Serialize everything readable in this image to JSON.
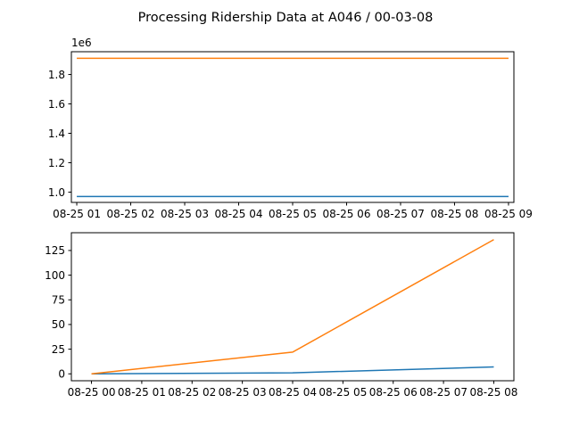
{
  "figure": {
    "title": "Processing Ridership Data at A046 / 00-03-08"
  },
  "chart_data": [
    {
      "type": "line",
      "title": "",
      "xlabel": "",
      "ylabel": "",
      "y_offset_label": "1e6",
      "xlim": [
        0.9,
        9.1
      ],
      "ylim": [
        0.93,
        1.955
      ],
      "x_ticks": [
        1,
        2,
        3,
        4,
        5,
        6,
        7,
        8,
        9
      ],
      "x_tick_labels": [
        "08-25 01",
        "08-25 02",
        "08-25 03",
        "08-25 04",
        "08-25 05",
        "08-25 06",
        "08-25 07",
        "08-25 08",
        "08-25 09"
      ],
      "y_ticks": [
        1.0,
        1.2,
        1.4,
        1.6,
        1.8
      ],
      "y_tick_labels": [
        "1.0",
        "1.2",
        "1.4",
        "1.6",
        "1.8"
      ],
      "grid": false,
      "legend": "none",
      "series": [
        {
          "color": "#1f77b4",
          "x": [
            1,
            5,
            9
          ],
          "y": [
            0.97,
            0.97,
            0.97
          ]
        },
        {
          "color": "#ff7f0e",
          "x": [
            1,
            5,
            9
          ],
          "y": [
            1.91,
            1.91,
            1.91
          ]
        }
      ]
    },
    {
      "type": "line",
      "title": "",
      "xlabel": "",
      "ylabel": "",
      "xlim": [
        -0.4,
        8.4
      ],
      "ylim": [
        -7,
        143
      ],
      "x_ticks": [
        0,
        1,
        2,
        3,
        4,
        5,
        6,
        7,
        8
      ],
      "x_tick_labels": [
        "08-25 00",
        "08-25 01",
        "08-25 02",
        "08-25 03",
        "08-25 04",
        "08-25 05",
        "08-25 06",
        "08-25 07",
        "08-25 08"
      ],
      "y_ticks": [
        0,
        25,
        50,
        75,
        100,
        125
      ],
      "y_tick_labels": [
        "0",
        "25",
        "50",
        "75",
        "100",
        "125"
      ],
      "grid": false,
      "legend": "none",
      "series": [
        {
          "color": "#1f77b4",
          "x": [
            0,
            4,
            8
          ],
          "y": [
            0,
            1,
            7
          ]
        },
        {
          "color": "#ff7f0e",
          "x": [
            0,
            4,
            8
          ],
          "y": [
            0,
            22,
            136
          ]
        }
      ]
    }
  ]
}
